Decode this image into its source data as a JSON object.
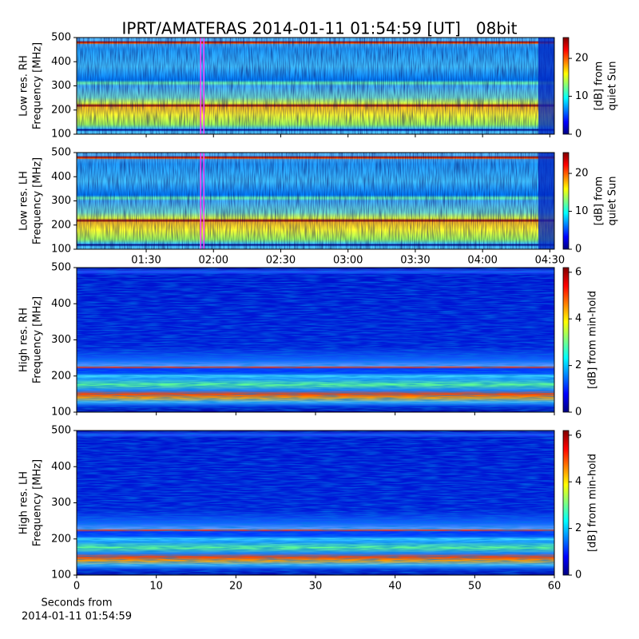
{
  "chart_data": [
    {
      "type": "heatmap",
      "title": "IPRT/AMATERAS 2014-01-11 01:54:59 [UT]   08bit",
      "ylabel": [
        "Low res. RH",
        "Frequency [MHz]"
      ],
      "ylim": [
        100,
        500
      ],
      "yticks": [
        100,
        200,
        300,
        400,
        500
      ],
      "xlim": [
        59,
        272
      ],
      "marker_x": 115,
      "colorbar": {
        "label": [
          "[dB] from",
          "quiet Sun"
        ],
        "lim": [
          0,
          25.5
        ],
        "ticks": [
          0,
          10,
          20
        ]
      }
    },
    {
      "type": "heatmap",
      "ylabel": [
        "Low res. LH",
        "Frequency [MHz]"
      ],
      "ylim": [
        100,
        500
      ],
      "yticks": [
        100,
        200,
        300,
        400,
        500
      ],
      "xlim": [
        59,
        272
      ],
      "marker_x": 115,
      "xticks": [
        {
          "value": 90,
          "label": "01:30"
        },
        {
          "value": 120,
          "label": "02:00"
        },
        {
          "value": 150,
          "label": "02:30"
        },
        {
          "value": 180,
          "label": "03:00"
        },
        {
          "value": 210,
          "label": "03:30"
        },
        {
          "value": 240,
          "label": "04:00"
        },
        {
          "value": 270,
          "label": "04:30"
        }
      ],
      "colorbar": {
        "label": [
          "[dB] from",
          "quiet Sun"
        ],
        "lim": [
          0,
          25.5
        ],
        "ticks": [
          0,
          10,
          20
        ]
      }
    },
    {
      "type": "heatmap",
      "ylabel": [
        "High res. RH",
        "Frequency [MHz]"
      ],
      "ylim": [
        100,
        500
      ],
      "yticks": [
        100,
        200,
        300,
        400,
        500
      ],
      "xlim": [
        0,
        60
      ],
      "colorbar": {
        "label": [
          "[dB] from min-hold"
        ],
        "lim": [
          0,
          6.2
        ],
        "ticks": [
          0,
          2,
          4,
          6
        ]
      }
    },
    {
      "type": "heatmap",
      "ylabel": [
        "High res. LH",
        "Frequency [MHz]"
      ],
      "ylim": [
        100,
        500
      ],
      "yticks": [
        100,
        200,
        300,
        400,
        500
      ],
      "xlim": [
        0,
        60
      ],
      "xticks": [
        0,
        10,
        20,
        30,
        40,
        50,
        60
      ],
      "xlabel": [
        "Seconds from",
        "2014-01-11 01:54:59"
      ],
      "colorbar": {
        "label": [
          "[dB] from min-hold"
        ],
        "lim": [
          0,
          6.2
        ],
        "ticks": [
          0,
          2,
          4,
          6
        ]
      }
    }
  ]
}
